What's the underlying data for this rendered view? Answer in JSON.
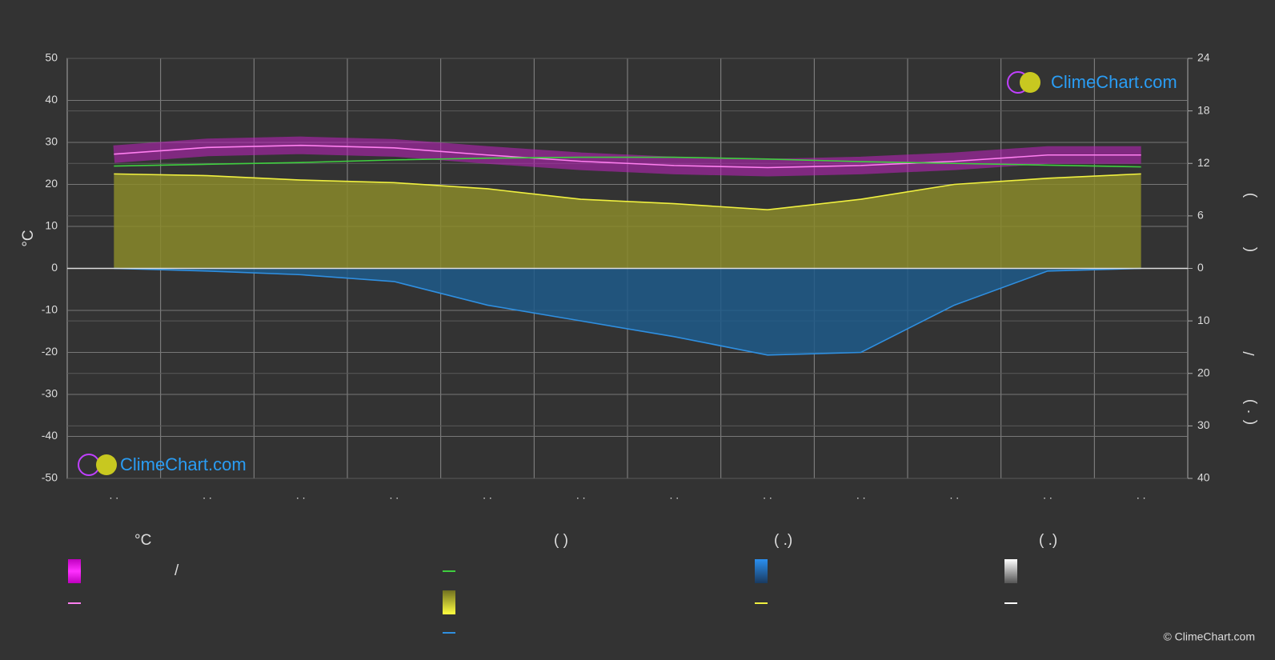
{
  "chart_data": {
    "type": "line",
    "categories": [
      ". .",
      ". .",
      ". .",
      ". .",
      ". .",
      ". .",
      ". .",
      ". .",
      ". .",
      ". .",
      ". .",
      ". ."
    ],
    "ylabel": "°C",
    "ylim": [
      -50,
      50
    ],
    "yticks": [
      -50,
      -40,
      -30,
      -20,
      -10,
      0,
      10,
      20,
      30,
      40,
      50
    ],
    "y2lim": [
      0,
      24
    ],
    "y2ticks": [
      0,
      6,
      12,
      18,
      24
    ],
    "y3lim": [
      0,
      40
    ],
    "y3ticks": [
      10,
      20,
      30,
      40
    ],
    "y2label_parts": [
      ")",
      "(",
      "/",
      ")",
      "(",
      "·"
    ],
    "grid": true,
    "series": [
      {
        "color": "#ff7ff0",
        "values": [
          27.2,
          28.8,
          29.3,
          28.7,
          27.0,
          25.5,
          24.5,
          24.0,
          24.5,
          25.5,
          27.0,
          27.0
        ]
      },
      {
        "color": "#3fcf3f",
        "axis": "y2",
        "values": [
          11.7,
          11.9,
          12.1,
          12.4,
          12.6,
          12.7,
          12.7,
          12.5,
          12.2,
          12.0,
          11.8,
          11.6
        ]
      },
      {
        "color": "#f0f040",
        "axis": "y2",
        "values": [
          10.8,
          10.6,
          10.1,
          9.8,
          9.1,
          7.9,
          7.4,
          6.7,
          7.9,
          9.6,
          10.3,
          10.8
        ]
      },
      {
        "color": "#2f8fe0",
        "axis": "y3",
        "values": [
          0,
          0.5,
          1.2,
          2.5,
          7.0,
          10.0,
          13.0,
          16.5,
          16.0,
          7.0,
          0.5,
          0
        ]
      }
    ],
    "legend_headers": [
      "°C",
      "(          )",
      "(   .)",
      "(   .)"
    ],
    "legend_text": "/",
    "logo": "ClimeChart.com",
    "copyright": "© ClimeChart.com"
  }
}
